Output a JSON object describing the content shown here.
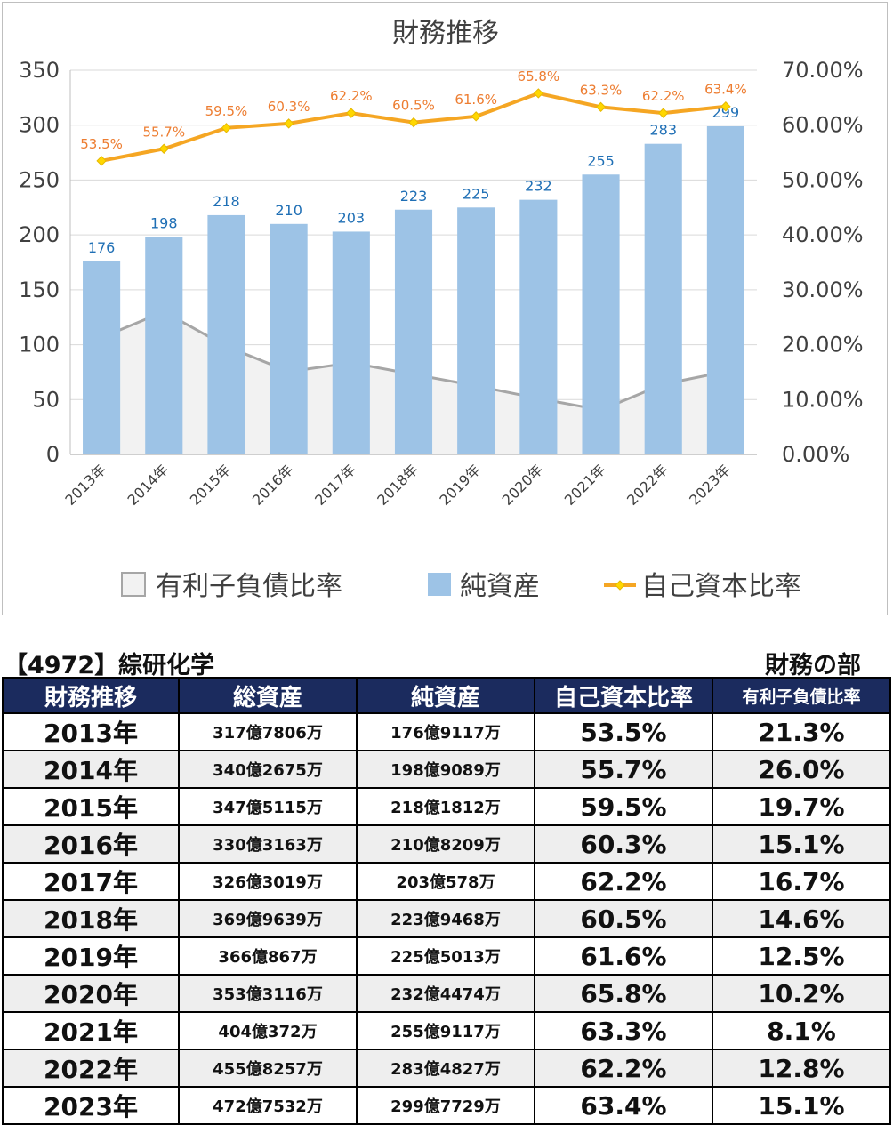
{
  "chart_data": {
    "type": "bar",
    "title": "財務推移",
    "categories": [
      "2013年",
      "2014年",
      "2015年",
      "2016年",
      "2017年",
      "2018年",
      "2019年",
      "2020年",
      "2021年",
      "2022年",
      "2023年"
    ],
    "series": [
      {
        "name": "有利子負債比率",
        "type": "area",
        "axis": "right",
        "color": "#f2f2f2",
        "line_color": "#a6a6a6",
        "values": [
          21.3,
          26.0,
          19.7,
          15.1,
          16.7,
          14.6,
          12.5,
          10.2,
          8.1,
          12.8,
          15.1
        ]
      },
      {
        "name": "純資産",
        "type": "bar",
        "axis": "left",
        "color": "#9dc3e6",
        "values": [
          176,
          198,
          218,
          210,
          203,
          223,
          225,
          232,
          255,
          283,
          299
        ],
        "labels": [
          "176",
          "198",
          "218",
          "210",
          "203",
          "223",
          "225",
          "232",
          "255",
          "283",
          "299"
        ]
      },
      {
        "name": "自己資本比率",
        "type": "line",
        "axis": "right",
        "color": "#f5a623",
        "values": [
          53.5,
          55.7,
          59.5,
          60.3,
          62.2,
          60.5,
          61.6,
          65.8,
          63.3,
          62.2,
          63.4
        ],
        "labels": [
          "53.5%",
          "55.7%",
          "59.5%",
          "60.3%",
          "62.2%",
          "60.5%",
          "61.6%",
          "65.8%",
          "63.3%",
          "62.2%",
          "63.4%"
        ]
      }
    ],
    "ylim": [
      0,
      350
    ],
    "yticks": [
      "0",
      "50",
      "100",
      "150",
      "200",
      "250",
      "300",
      "350"
    ],
    "y2lim": [
      0,
      70
    ],
    "y2ticks": [
      "0.00%",
      "10.00%",
      "20.00%",
      "30.00%",
      "40.00%",
      "50.00%",
      "60.00%",
      "70.00%"
    ],
    "legend_position": "bottom",
    "grid": true
  },
  "table": {
    "company": "【4972】綜研化学",
    "section": "財務の部",
    "headers": [
      "財務推移",
      "総資産",
      "純資産",
      "自己資本比率",
      "有利子負債比率"
    ],
    "rows": [
      [
        "2013年",
        "317億7806万",
        "176億9117万",
        "53.5%",
        "21.3%"
      ],
      [
        "2014年",
        "340億2675万",
        "198億9089万",
        "55.7%",
        "26.0%"
      ],
      [
        "2015年",
        "347億5115万",
        "218億1812万",
        "59.5%",
        "19.7%"
      ],
      [
        "2016年",
        "330億3163万",
        "210億8209万",
        "60.3%",
        "15.1%"
      ],
      [
        "2017年",
        "326億3019万",
        "203億578万",
        "62.2%",
        "16.7%"
      ],
      [
        "2018年",
        "369億9639万",
        "223億9468万",
        "60.5%",
        "14.6%"
      ],
      [
        "2019年",
        "366億867万",
        "225億5013万",
        "61.6%",
        "12.5%"
      ],
      [
        "2020年",
        "353億3116万",
        "232億4474万",
        "65.8%",
        "10.2%"
      ],
      [
        "2021年",
        "404億372万",
        "255億9117万",
        "63.3%",
        "8.1%"
      ],
      [
        "2022年",
        "455億8257万",
        "283億4827万",
        "62.2%",
        "12.8%"
      ],
      [
        "2023年",
        "472億7532万",
        "299億7729万",
        "63.4%",
        "15.1%"
      ]
    ]
  }
}
